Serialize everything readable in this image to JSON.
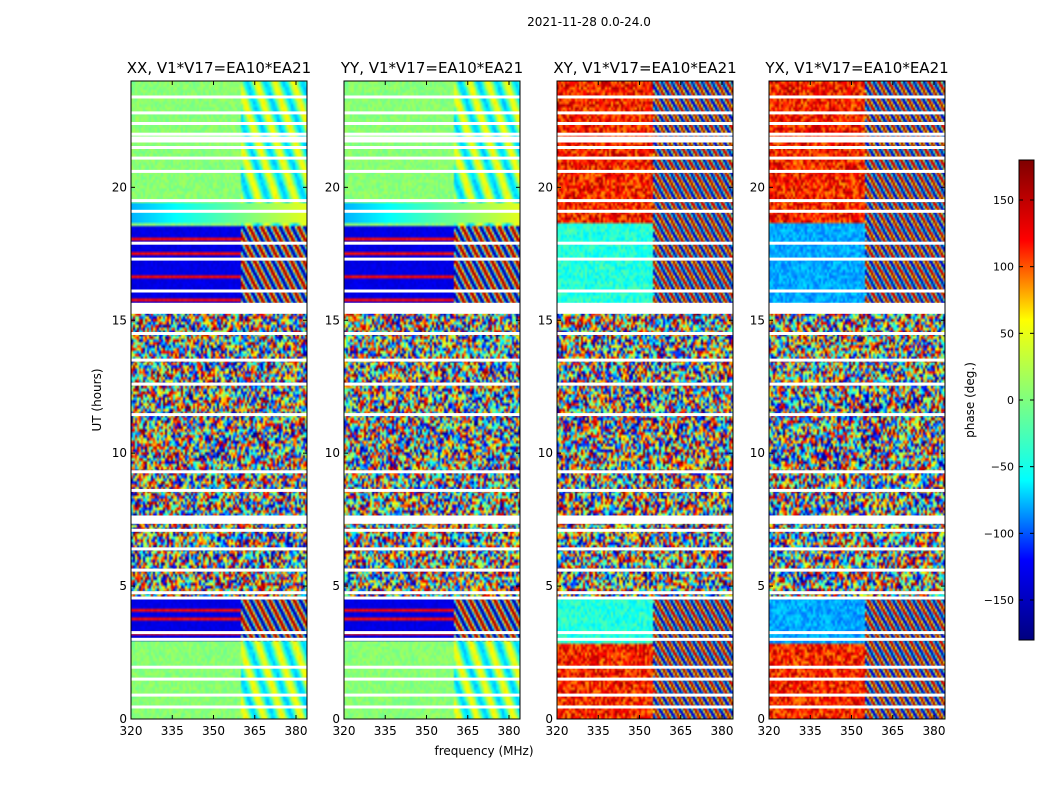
{
  "chart_data": {
    "type": "heatmap",
    "title": "2021-11-28 0.0-24.0",
    "xlabel": "frequency (MHz)",
    "ylabel": "UT (hours)",
    "colorbar_label": "phase (deg.)",
    "colorbar_ticks": [
      150,
      100,
      50,
      0,
      -50,
      -100,
      -150
    ],
    "colorbar_range": [
      -180,
      180
    ],
    "colormap": "jet",
    "colormap_stops": [
      "#00007f",
      "#0000ff",
      "#00ffff",
      "#7fff7f",
      "#ffff00",
      "#ff0000",
      "#7f0000"
    ],
    "xlim": [
      320,
      384
    ],
    "ylim": [
      0,
      24
    ],
    "x_ticks": [
      320,
      335,
      350,
      365,
      380
    ],
    "y_ticks": [
      0,
      5,
      10,
      15,
      20
    ],
    "panels": [
      {
        "title": "XX, V1*V17=EA10*EA21",
        "pol": "XX"
      },
      {
        "title": "YY, V1*V17=EA10*EA21",
        "pol": "YY"
      },
      {
        "title": "XY, V1*V17=EA10*EA21",
        "pol": "XY"
      },
      {
        "title": "YX, V1*V17=EA10*EA21",
        "pol": "YX"
      }
    ],
    "flagged_time_hours": [
      0.45,
      0.9,
      1.5,
      1.95,
      3.0,
      3.25,
      4.55,
      4.75,
      5.6,
      6.4,
      7.1,
      7.4,
      7.6,
      8.6,
      9.3,
      11.45,
      12.6,
      13.5,
      14.5,
      15.3,
      15.6,
      16.1,
      17.3,
      17.9,
      19.1,
      19.5,
      20.6,
      21.1,
      21.5,
      22.0,
      22.4,
      22.8,
      23.4
    ]
  }
}
